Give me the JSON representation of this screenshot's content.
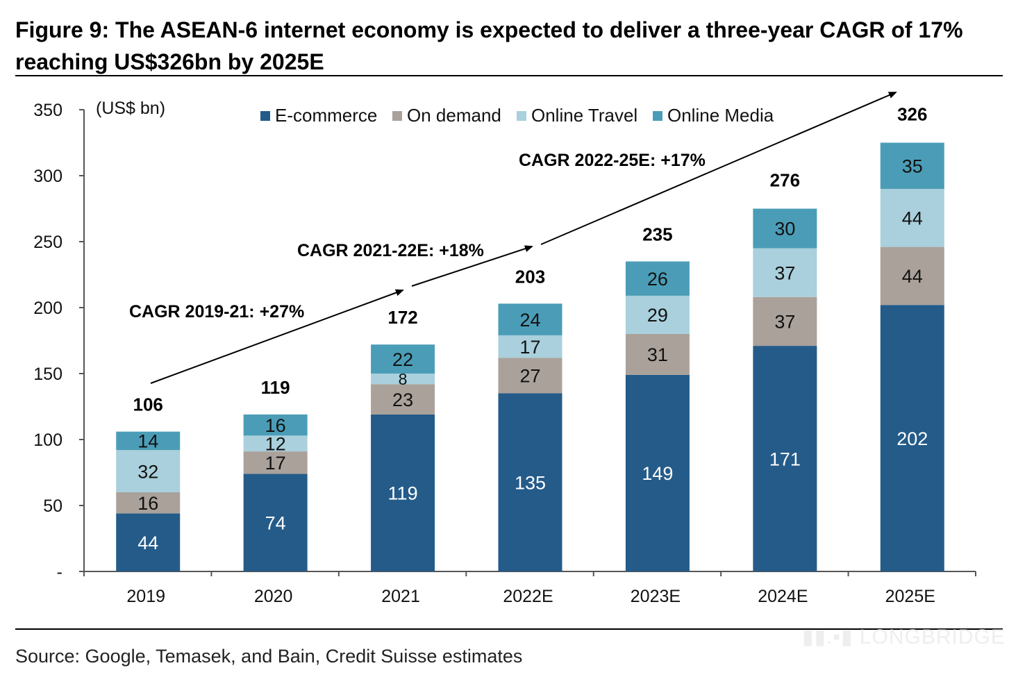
{
  "title": "Figure 9: The ASEAN-6 internet economy is expected to deliver a three-year CAGR of 17% reaching US$326bn by 2025E",
  "source": "Source: Google, Temasek, and Bain, Credit Suisse estimates",
  "watermark": "LONGBRIDGE",
  "chart_data": {
    "type": "bar",
    "stacked": true,
    "unit_label": "(US$ bn)",
    "categories": [
      "2019",
      "2020",
      "2021",
      "2022E",
      "2023E",
      "2024E",
      "2025E"
    ],
    "series": [
      {
        "name": "E-commerce",
        "color": "#245b89",
        "values": [
          44,
          74,
          119,
          135,
          149,
          171,
          202
        ]
      },
      {
        "name": "On demand",
        "color": "#aaa19b",
        "values": [
          16,
          17,
          23,
          27,
          31,
          37,
          44
        ]
      },
      {
        "name": "Online Travel",
        "color": "#a9d0dc",
        "values": [
          32,
          12,
          8,
          17,
          29,
          37,
          44
        ]
      },
      {
        "name": "Online Media",
        "color": "#4b9db7",
        "values": [
          14,
          16,
          22,
          24,
          26,
          30,
          35
        ]
      }
    ],
    "totals": [
      106,
      119,
      172,
      203,
      235,
      276,
      326
    ],
    "ylim": [
      0,
      350
    ],
    "yticks": [
      0,
      50,
      100,
      150,
      200,
      250,
      300,
      350
    ],
    "ytick_labels": [
      "-",
      "50",
      "100",
      "150",
      "200",
      "250",
      "300",
      "350"
    ],
    "legend_position": "top",
    "grid": false,
    "annotations": [
      "CAGR 2019-21: +27%",
      "CAGR 2021-22E: +18%",
      "CAGR 2022-25E: +17%"
    ]
  }
}
